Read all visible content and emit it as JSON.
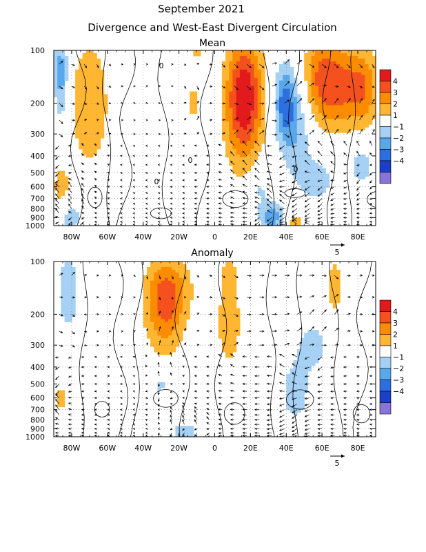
{
  "title": "September 2021",
  "subtitle": "Divergence and West-East Divergent Circulation",
  "chart_data": [
    {
      "type": "heatmap",
      "panel_title": "Mean",
      "x_ticks": [
        "80W",
        "60W",
        "40W",
        "20W",
        "0",
        "20E",
        "40E",
        "60E",
        "80E"
      ],
      "x_tick_values": [
        -80,
        -60,
        -40,
        -20,
        0,
        20,
        40,
        60,
        80
      ],
      "xlim": [
        -90,
        90
      ],
      "y_ticks": [
        "100",
        "200",
        "300",
        "400",
        "500",
        "600",
        "700",
        "800",
        "900",
        "1000"
      ],
      "y_tick_values": [
        100,
        200,
        300,
        400,
        500,
        600,
        700,
        800,
        900,
        1000
      ],
      "ylim": [
        1000,
        100
      ],
      "y_scale": "log",
      "contour_label": "0",
      "reference_vector": "5",
      "divergence_blobs": [
        {
          "lon": 17,
          "p": 180,
          "v": 3.6,
          "rx": 10,
          "ry": 0.75
        },
        {
          "lon": 15,
          "p": 220,
          "v": 1.6,
          "rx": 11,
          "ry": 0.9
        },
        {
          "lon": 70,
          "p": 160,
          "v": 3.2,
          "rx": 14,
          "ry": 0.55
        },
        {
          "lon": 58,
          "p": 140,
          "v": 2.0,
          "rx": 10,
          "ry": 0.6
        },
        {
          "lon": 84,
          "p": 165,
          "v": 2.0,
          "rx": 8,
          "ry": 0.5
        },
        {
          "lon": -70,
          "p": 200,
          "v": 2.0,
          "rx": 11,
          "ry": 0.85
        },
        {
          "lon": -12,
          "p": 195,
          "v": 1.3,
          "rx": 5,
          "ry": 0.3
        },
        {
          "lon": -86,
          "p": 620,
          "v": 1.6,
          "rx": 5,
          "ry": 0.35
        },
        {
          "lon": 45,
          "p": 950,
          "v": 1.6,
          "rx": 6,
          "ry": 0.12
        },
        {
          "lon": -10,
          "p": 105,
          "v": 1.2,
          "rx": 4,
          "ry": 0.1
        },
        {
          "lon": 39,
          "p": 200,
          "v": -3.0,
          "rx": 6,
          "ry": 0.5
        },
        {
          "lon": 46,
          "p": 280,
          "v": -1.8,
          "rx": 9,
          "ry": 0.75
        },
        {
          "lon": -86,
          "p": 135,
          "v": -2.6,
          "rx": 4,
          "ry": 0.6
        },
        {
          "lon": 32,
          "p": 900,
          "v": -2.6,
          "rx": 7,
          "ry": 0.2
        },
        {
          "lon": -82,
          "p": 880,
          "v": -1.5,
          "rx": 10,
          "ry": 0.25
        },
        {
          "lon": 58,
          "p": 550,
          "v": -1.5,
          "rx": 9,
          "ry": 0.3
        },
        {
          "lon": 25,
          "p": 600,
          "v": -1.3,
          "rx": 6,
          "ry": 0.3
        },
        {
          "lon": 82,
          "p": 450,
          "v": -1.5,
          "rx": 7,
          "ry": 0.3
        }
      ]
    },
    {
      "type": "heatmap",
      "panel_title": "Anomaly",
      "x_ticks": [
        "80W",
        "60W",
        "40W",
        "20W",
        "0",
        "20E",
        "40E",
        "60E",
        "80E"
      ],
      "x_tick_values": [
        -80,
        -60,
        -40,
        -20,
        0,
        20,
        40,
        60,
        80
      ],
      "xlim": [
        -90,
        90
      ],
      "y_ticks": [
        "100",
        "200",
        "300",
        "400",
        "500",
        "600",
        "700",
        "800",
        "900",
        "1000"
      ],
      "y_tick_values": [
        100,
        200,
        300,
        400,
        500,
        600,
        700,
        800,
        900,
        1000
      ],
      "ylim": [
        1000,
        100
      ],
      "y_scale": "log",
      "reference_vector": "5",
      "divergence_blobs": [
        {
          "lon": -28,
          "p": 190,
          "v": 2.6,
          "rx": 11,
          "ry": 0.6
        },
        {
          "lon": -25,
          "p": 140,
          "v": 1.5,
          "rx": 14,
          "ry": 0.45
        },
        {
          "lon": 8,
          "p": 230,
          "v": 1.8,
          "rx": 7,
          "ry": 0.55
        },
        {
          "lon": 8,
          "p": 120,
          "v": 1.2,
          "rx": 6,
          "ry": 0.3
        },
        {
          "lon": 67,
          "p": 140,
          "v": 1.5,
          "rx": 5,
          "ry": 0.45
        },
        {
          "lon": -86,
          "p": 600,
          "v": 1.5,
          "rx": 4,
          "ry": 0.2
        },
        {
          "lon": -82,
          "p": 150,
          "v": -1.6,
          "rx": 7,
          "ry": 0.6
        },
        {
          "lon": 55,
          "p": 300,
          "v": -1.4,
          "rx": 10,
          "ry": 0.35
        },
        {
          "lon": 45,
          "p": 560,
          "v": -1.5,
          "rx": 9,
          "ry": 0.45
        },
        {
          "lon": -17,
          "p": 930,
          "v": -1.3,
          "rx": 12,
          "ry": 0.15
        },
        {
          "lon": -30,
          "p": 500,
          "v": -1.3,
          "rx": 5,
          "ry": 0.2
        }
      ]
    }
  ],
  "colorbar": {
    "labels": [
      "4",
      "3",
      "2",
      "1",
      "−1",
      "−2",
      "−3",
      "−4"
    ],
    "colors": [
      "#e31a1c",
      "#f4511e",
      "#fb8c00",
      "#ffb733",
      "#ffffff",
      "#a6d1f5",
      "#5aa8ec",
      "#2b6fe0",
      "#1a3fc9",
      "#8a73d9"
    ]
  }
}
